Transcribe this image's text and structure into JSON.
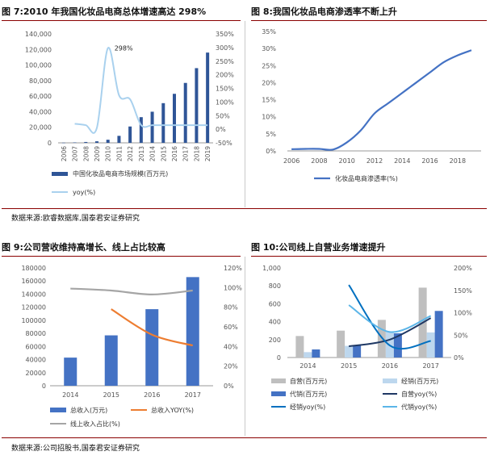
{
  "panels": [
    {
      "title": "图 7:2010 年我国化妆品电商总体增速高达 298%",
      "chart_data": {
        "type": "bar",
        "categories": [
          "2006",
          "2007",
          "2008",
          "2009",
          "2010",
          "2011",
          "2012",
          "2013",
          "2014",
          "2015",
          "2016",
          "2017",
          "2018",
          "2019"
        ],
        "series": [
          {
            "name": "中国化妆品电商市场规模(百万元)",
            "axis": "left",
            "type": "bar",
            "color": "#2f5597",
            "values": [
              200,
              500,
              1100,
              2000,
              4000,
              9000,
              21000,
              33000,
              40000,
              51000,
              63000,
              77000,
              96000,
              116000
            ]
          },
          {
            "name": "yoy(%)",
            "axis": "right",
            "type": "line",
            "color": "#a9d1ee",
            "values": [
              null,
              20,
              15,
              5,
              298,
              125,
              110,
              15,
              15,
              15,
              15,
              15,
              15,
              15
            ]
          }
        ],
        "y_left": {
          "min": 0,
          "max": 140000,
          "ticks": [
            "0",
            "20,000",
            "40,000",
            "60,000",
            "80,000",
            "100,000",
            "120,000",
            "140,000"
          ]
        },
        "y_right": {
          "min": -50,
          "max": 350,
          "ticks": [
            "-50%",
            "0%",
            "50%",
            "100%",
            "150%",
            "200%",
            "250%",
            "300%",
            "350%"
          ]
        },
        "annotations": [
          "298%"
        ],
        "legend": "bottom"
      }
    },
    {
      "title": "图 8:我国化妆品电商渗透率不断上升",
      "chart_data": {
        "type": "line",
        "x": [
          2006,
          2007,
          2008,
          2009,
          2010,
          2011,
          2012,
          2013,
          2014,
          2015,
          2016,
          2017,
          2018,
          2019
        ],
        "x_ticks": [
          "2006",
          "2008",
          "2010",
          "2012",
          "2014",
          "2016",
          "2018"
        ],
        "series": [
          {
            "name": "化妆品电商渗透率(%)",
            "color": "#4472c4",
            "values": [
              0.5,
              0.6,
              0.6,
              0.4,
              2.5,
              6,
              11,
              14,
              17,
              20,
              23,
              26,
              28,
              29.5
            ]
          }
        ],
        "y": {
          "min": 0,
          "max": 35,
          "ticks": [
            "0%",
            "5%",
            "10%",
            "15%",
            "20%",
            "25%",
            "30%",
            "35%"
          ]
        },
        "legend": "bottom"
      }
    },
    {
      "title": "图 9:公司营收维持高增长、线上占比较高",
      "chart_data": {
        "type": "bar",
        "categories": [
          "2014",
          "2015",
          "2016",
          "2017"
        ],
        "series": [
          {
            "name": "总收入(万元)",
            "axis": "left",
            "type": "bar",
            "color": "#4472c4",
            "values": [
              43000,
              77000,
              117000,
              166000
            ]
          },
          {
            "name": "总收入YOY(%)",
            "axis": "right",
            "type": "line",
            "color": "#ed7d31",
            "values": [
              null,
              78,
              52,
              41
            ]
          },
          {
            "name": "线上收入占比(%)",
            "axis": "right",
            "type": "line",
            "color": "#a5a5a5",
            "values": [
              99,
              97,
              93,
              97
            ]
          }
        ],
        "y_left": {
          "min": 0,
          "max": 180000,
          "ticks": [
            "0",
            "20000",
            "40000",
            "60000",
            "80000",
            "100000",
            "120000",
            "140000",
            "160000",
            "180000"
          ]
        },
        "y_right": {
          "min": 0,
          "max": 120,
          "ticks": [
            "0%",
            "20%",
            "40%",
            "60%",
            "80%",
            "100%",
            "120%"
          ]
        },
        "legend": "bottom"
      }
    },
    {
      "title": "图 10:公司线上自营业务增速提升",
      "chart_data": {
        "type": "bar",
        "categories": [
          "2014",
          "2015",
          "2016",
          "2017"
        ],
        "series": [
          {
            "name": "自营(百万元)",
            "axis": "left",
            "type": "bar",
            "color": "#bfbfbf",
            "values": [
              240,
              300,
              420,
              780
            ]
          },
          {
            "name": "经销(百万元)",
            "axis": "left",
            "type": "bar",
            "color": "#bdd7ee",
            "values": [
              60,
              130,
              290,
              280
            ]
          },
          {
            "name": "代销(百万元)",
            "axis": "left",
            "type": "bar",
            "color": "#4472c4",
            "values": [
              90,
              140,
              270,
              520
            ]
          },
          {
            "name": "自营yoy(%)",
            "axis": "right",
            "type": "line",
            "color": "#1f3864",
            "values": [
              null,
              25,
              40,
              88
            ]
          },
          {
            "name": "经销yoy(%)",
            "axis": "right",
            "type": "line",
            "color": "#0070c0",
            "values": [
              null,
              162,
              27,
              37
            ]
          },
          {
            "name": "代销yoy(%)",
            "axis": "right",
            "type": "line",
            "color": "#5bb5e8",
            "values": [
              null,
              117,
              57,
              93
            ]
          }
        ],
        "y_left": {
          "min": 0,
          "max": 1000,
          "ticks": [
            "0",
            "200",
            "400",
            "600",
            "800",
            "1,000"
          ]
        },
        "y_right": {
          "min": 0,
          "max": 200,
          "ticks": [
            "0%",
            "50%",
            "100%",
            "150%",
            "200%"
          ]
        },
        "legend": "bottom"
      }
    }
  ],
  "sources": {
    "top": "数据来源:欧睿数据库,国泰君安证券研究",
    "bottom": "数据来源:公司招股书,国泰君安证券研究"
  }
}
